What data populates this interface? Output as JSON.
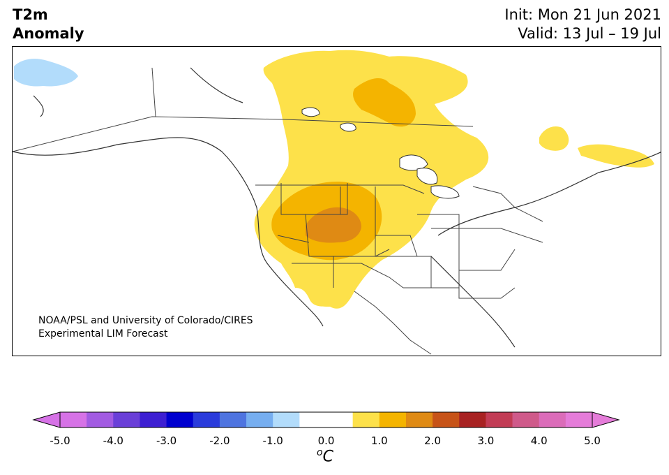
{
  "title": {
    "line1": "T2m",
    "line2": "Anomaly",
    "init": "Init: Mon 21 Jun 2021",
    "valid": "Valid: 13 Jul – 19 Jul"
  },
  "credit": {
    "line1": "NOAA/PSL and University of Colorado/CIRES",
    "line2": "Experimental LIM Forecast"
  },
  "colorbar": {
    "unit_prefix": "o",
    "unit_suffix": "C",
    "tick_labels": [
      "-5.0",
      "-4.0",
      "-3.0",
      "-2.0",
      "-1.0",
      "0.0",
      "1.0",
      "2.0",
      "3.0",
      "4.0",
      "5.0"
    ],
    "colors": [
      "#d672e6",
      "#a25be2",
      "#6a3fd8",
      "#3d1fd2",
      "#0000cf",
      "#2a3bdb",
      "#4e74e0",
      "#76aef0",
      "#b2dcfb",
      "#ffffff",
      "#ffffff",
      "#fde14a",
      "#f4b400",
      "#df8a14",
      "#c75318",
      "#a82222",
      "#c23c55",
      "#cf5a8a",
      "#db6cb9",
      "#e57cd9"
    ],
    "extend_low": "#d672e6",
    "extend_high": "#e57cd9"
  },
  "map": {
    "region": "North America",
    "anomaly_colors": {
      "pale_blue": "#b2dcfb",
      "yellow": "#fde14a",
      "gold": "#f4b400",
      "orange": "#df8a14"
    }
  }
}
